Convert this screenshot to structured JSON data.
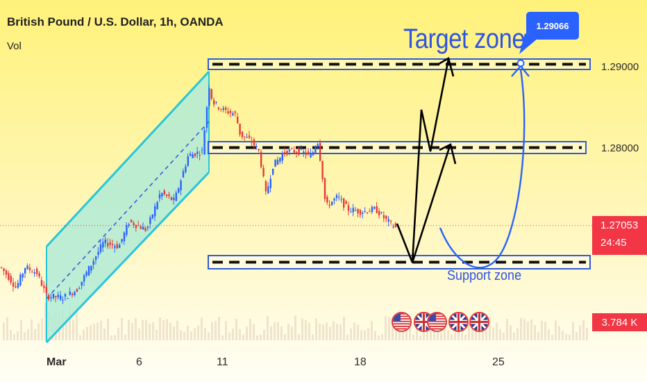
{
  "header": {
    "title": "British Pound / U.S. Dollar, 1h, OANDA",
    "volume_label": "Vol"
  },
  "annotations": {
    "target_zone": "Target zone",
    "support_zone": "Support zone",
    "target_price": "1.29066"
  },
  "price_axis": {
    "labels": [
      "1.29000",
      "1.28000"
    ],
    "current_price": "1.27053",
    "countdown": "24:45",
    "volume_value": "3.784 K"
  },
  "time_axis": {
    "labels": [
      "Mar",
      "6",
      "11",
      "18",
      "25"
    ]
  },
  "events": {
    "flags": [
      "us-flag-icon",
      "uk-flag-icon",
      "us-flag-icon",
      "uk-flag-icon",
      "uk-flag-icon"
    ]
  },
  "colors": {
    "channel": "#26c6da",
    "channel_fill": "#b2ebd6",
    "candle_up": "#2962ff",
    "candle_down": "#e53935",
    "zone_border": "#2e5bd9",
    "arrows": "#000000",
    "curve": "#2962ff",
    "current_price_line": "#f23645"
  },
  "chart_data": {
    "type": "candlestick",
    "title": "British Pound / U.S. Dollar, 1h, OANDA",
    "xlabel": "",
    "ylabel": "",
    "x_ticks": [
      "Mar",
      "6",
      "11",
      "18",
      "25"
    ],
    "y_ticks": [
      1.29,
      1.28
    ],
    "ylim": [
      1.2575,
      1.2935
    ],
    "current_price": 1.27053,
    "target_price": 1.29066,
    "zones": [
      {
        "name": "Target zone",
        "level": 1.29
      },
      {
        "name": "",
        "level": 1.28
      },
      {
        "name": "Support zone",
        "level": 1.2675
      }
    ],
    "series": [
      {
        "name": "price",
        "points": [
          [
            "Feb 29",
            1.2655
          ],
          [
            "Mar 1",
            1.2635
          ],
          [
            "Mar 1",
            1.265
          ],
          [
            "Mar 4",
            1.263
          ],
          [
            "Mar 5",
            1.268
          ],
          [
            "Mar 6",
            1.27
          ],
          [
            "Mar 7",
            1.275
          ],
          [
            "Mar 8",
            1.282
          ],
          [
            "Mar 8",
            1.289
          ],
          [
            "Mar 11",
            1.285
          ],
          [
            "Mar 12",
            1.279
          ],
          [
            "Mar 13",
            1.277
          ],
          [
            "Mar 14",
            1.2795
          ],
          [
            "Mar 15",
            1.279
          ],
          [
            "Mar 18",
            1.2725
          ],
          [
            "Mar 19",
            1.2722
          ],
          [
            "Mar 19",
            1.271
          ],
          [
            "Mar 20",
            1.2705
          ]
        ]
      }
    ],
    "grid": false,
    "legend": "none"
  }
}
